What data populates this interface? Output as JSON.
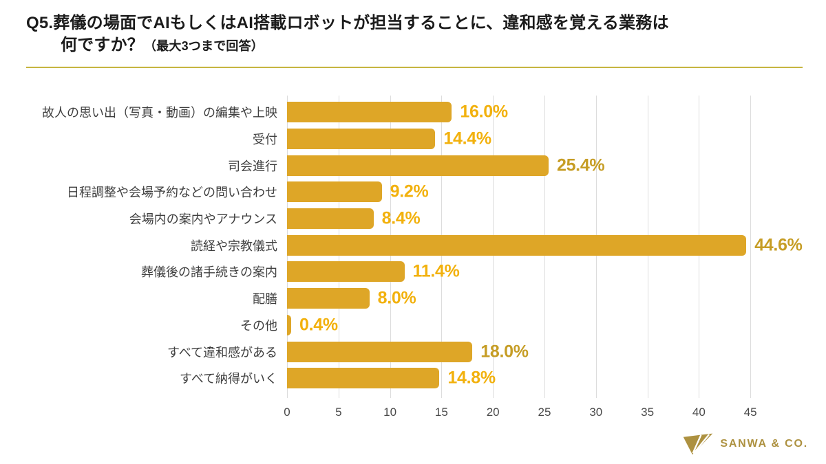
{
  "title": {
    "line1": "Q5.葬儀の場面でAIもしくはAI搭載ロボットが担当することに、違和感を覚える業務は",
    "line2_main": "何ですか？",
    "line2_note": "（最大3つまで回答）"
  },
  "chart_data": {
    "type": "bar",
    "orientation": "horizontal",
    "title": "葬儀の場面でAIもしくはAI搭載ロボットが担当することに違和感を覚える業務",
    "categories": [
      "故人の思い出（写真・動画）の編集や上映",
      "受付",
      "司会進行",
      "日程調整や会場予約などの問い合わせ",
      "会場内の案内やアナウンス",
      "読経や宗教儀式",
      "葬儀後の諸手続きの案内",
      "配膳",
      "その他",
      "すべて違和感がある",
      "すべて納得がいく"
    ],
    "values": [
      16.0,
      14.4,
      25.4,
      9.2,
      8.4,
      44.6,
      11.4,
      8.0,
      0.4,
      18.0,
      14.8
    ],
    "value_labels": [
      "16.0%",
      "14.4%",
      "25.4%",
      "9.2%",
      "8.4%",
      "44.6%",
      "11.4%",
      "8.0%",
      "0.4%",
      "18.0%",
      "14.8%"
    ],
    "highlighted_indices": [
      2,
      5,
      9
    ],
    "x_ticks": [
      0,
      5,
      10,
      15,
      20,
      25,
      30,
      35,
      40,
      45
    ],
    "xlim": [
      0,
      50
    ],
    "xlabel": "",
    "ylabel": "",
    "grid": true,
    "legend": false
  },
  "colors": {
    "bar": "#dea627",
    "value_label_bright": "#f2b10d",
    "value_label_highlight": "#c69d25",
    "title_text": "#1b1b1b",
    "category_text": "#3f3f3f",
    "tick_text": "#4a4a4a",
    "gridline": "#dcdcdc",
    "rule": "#c6b53f",
    "brand_gold": "#ad9140"
  },
  "footer": {
    "brand": "SANWA & CO.",
    "logo_icon": "sanwa-arrow-icon"
  }
}
